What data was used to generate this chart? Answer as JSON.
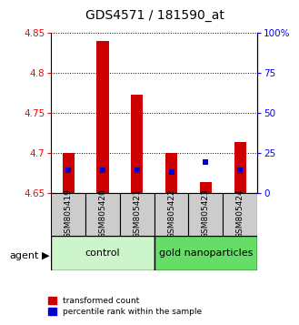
{
  "title": "GDS4571 / 181590_at",
  "samples": [
    "GSM805419",
    "GSM805420",
    "GSM805421",
    "GSM805422",
    "GSM805423",
    "GSM805424"
  ],
  "red_values": [
    4.7,
    4.84,
    4.773,
    4.7,
    4.663,
    4.713
  ],
  "blue_percentiles": [
    14,
    14,
    14,
    13,
    19,
    14
  ],
  "baseline": 4.65,
  "ylim_left": [
    4.65,
    4.85
  ],
  "ylim_right": [
    0,
    100
  ],
  "yticks_left": [
    4.65,
    4.7,
    4.75,
    4.8,
    4.85
  ],
  "ytick_labels_left": [
    "4.65",
    "4.7",
    "4.75",
    "4.8",
    "4.85"
  ],
  "yticks_right": [
    0,
    25,
    50,
    75,
    100
  ],
  "ytick_labels_right": [
    "0",
    "25",
    "50",
    "75",
    "100%"
  ],
  "group1_label": "control",
  "group2_label": "gold nanoparticles",
  "group1_color": "#ccf5cc",
  "group2_color": "#66dd66",
  "agent_label": "agent",
  "legend_red_label": "transformed count",
  "legend_blue_label": "percentile rank within the sample",
  "bar_color": "#cc0000",
  "dot_color": "#0000cc",
  "bar_width": 0.35,
  "label_bg_color": "#cccccc"
}
